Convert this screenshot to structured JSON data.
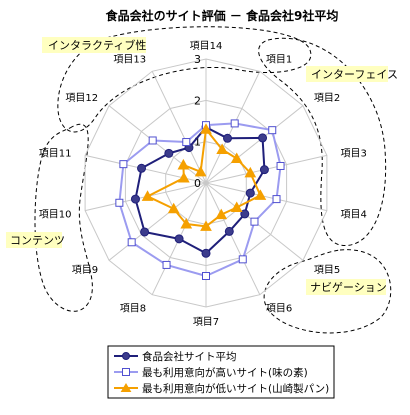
{
  "chart_data": {
    "type": "radar",
    "title": "食品会社のサイト評価 － 食品会社9社平均",
    "categories": [
      "項目14",
      "項目1",
      "項目2",
      "項目3",
      "項目4",
      "項目5",
      "項目6",
      "項目7",
      "項目8",
      "項目9",
      "項目10",
      "項目11",
      "項目12",
      "項目13"
    ],
    "rlim": [
      0,
      3
    ],
    "ticks": [
      "0",
      "1",
      "2",
      "3"
    ],
    "groups": [
      "インタラクティブ性",
      "インターフェイス",
      "ナビゲーション",
      "コンテンツ"
    ],
    "series": [
      {
        "name": "食品会社サイト平均",
        "color": "#1f1f7a",
        "marker": "circle",
        "values": [
          1.35,
          1.2,
          1.75,
          1.45,
          1.1,
          1.2,
          1.3,
          1.7,
          1.5,
          1.9,
          1.75,
          1.6,
          1.15,
          0.95
        ]
      },
      {
        "name": "最も利用意向が高いサイト(味の素)",
        "color": "#9b9bf0",
        "marker": "square",
        "values": [
          1.4,
          1.6,
          2.05,
          1.85,
          1.75,
          1.5,
          2.05,
          2.25,
          2.2,
          2.3,
          2.15,
          2.05,
          1.65,
          1.1
        ]
      },
      {
        "name": "最も利用意向が低いサイト(山崎製パン)",
        "color": "#f5a000",
        "marker": "triangle",
        "values": [
          1.3,
          0.9,
          0.95,
          1.1,
          1.35,
          0.95,
          0.85,
          1.05,
          1.1,
          1.0,
          1.45,
          0.55,
          0.7,
          0.3
        ]
      }
    ]
  }
}
